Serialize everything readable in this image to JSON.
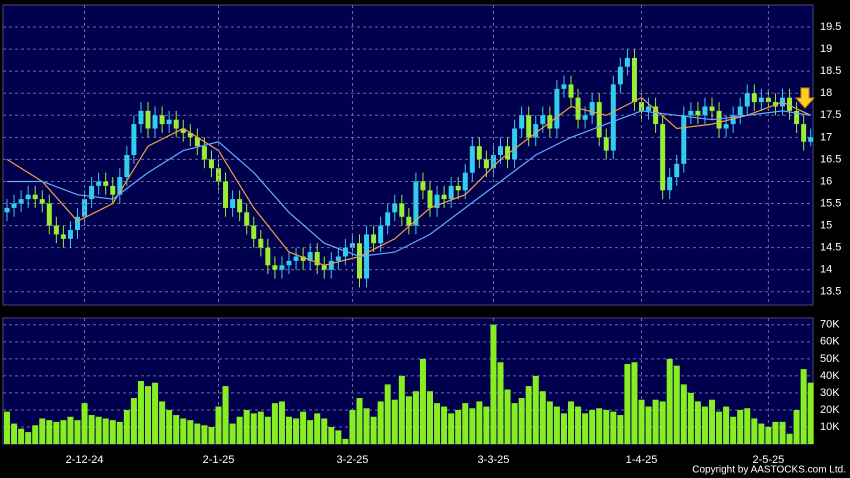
{
  "chart_data": [
    {
      "type": "candlestick",
      "ylim": [
        13.2,
        20.0
      ],
      "yticks": [
        13.5,
        14,
        14.5,
        15,
        15.5,
        16,
        16.5,
        17,
        17.5,
        18,
        18.5,
        19,
        19.5
      ],
      "up_color": "#33ccee",
      "down_color": "#99ee33",
      "grid": true,
      "open": [
        15.3,
        15.4,
        15.5,
        15.6,
        15.7,
        15.6,
        15.5,
        15.0,
        14.8,
        14.7,
        14.9,
        15.2,
        15.6,
        15.9,
        16.0,
        15.9,
        15.7,
        16.1,
        16.6,
        17.3,
        17.6,
        17.2,
        17.5,
        17.3,
        17.4,
        17.2,
        17.1,
        17.0,
        16.8,
        16.5,
        16.3,
        16.0,
        15.4,
        15.6,
        15.3,
        15.0,
        14.7,
        14.5,
        14.1,
        14.0,
        14.1,
        14.2,
        14.3,
        14.2,
        14.4,
        14.1,
        14.0,
        14.2,
        14.3,
        14.5,
        14.6,
        13.8,
        14.8,
        14.6,
        15.0,
        15.3,
        15.5,
        15.2,
        15.0,
        16.0,
        15.8,
        15.4,
        15.7,
        15.6,
        15.9,
        15.8,
        16.2,
        16.8,
        16.5,
        16.3,
        16.6,
        16.8,
        16.5,
        17.2,
        17.5,
        17.0,
        17.3,
        17.5,
        17.2,
        18.1,
        18.2,
        17.9,
        17.4,
        17.5,
        17.8,
        17.0,
        16.7,
        18.2,
        18.6,
        18.8,
        17.8,
        17.6,
        17.7,
        17.3,
        15.8,
        16.1,
        16.4,
        17.5,
        17.6,
        17.5,
        17.7,
        17.6,
        17.2,
        17.3,
        17.5,
        17.7,
        18.0,
        17.8,
        17.9,
        17.8,
        17.7,
        17.9,
        17.6,
        17.3,
        16.9
      ],
      "high": [
        15.6,
        15.7,
        15.8,
        15.9,
        15.9,
        15.8,
        15.7,
        15.2,
        15.0,
        15.1,
        15.4,
        15.8,
        16.1,
        16.2,
        16.2,
        16.1,
        16.3,
        16.8,
        17.5,
        17.8,
        17.8,
        17.7,
        17.7,
        17.6,
        17.6,
        17.4,
        17.3,
        17.2,
        17.0,
        16.7,
        16.5,
        16.2,
        15.8,
        15.8,
        15.5,
        15.2,
        14.9,
        14.7,
        14.3,
        14.3,
        14.4,
        14.5,
        14.5,
        14.6,
        14.6,
        14.3,
        14.4,
        14.5,
        14.7,
        14.8,
        14.8,
        15.0,
        15.0,
        15.2,
        15.5,
        15.7,
        15.7,
        15.4,
        16.2,
        16.2,
        16.0,
        15.9,
        15.9,
        16.1,
        16.1,
        16.4,
        17.0,
        17.0,
        16.7,
        16.8,
        17.0,
        17.0,
        17.4,
        17.7,
        17.7,
        17.5,
        17.7,
        17.7,
        18.3,
        18.4,
        18.4,
        18.1,
        17.7,
        18.0,
        18.0,
        17.2,
        18.4,
        18.8,
        19.0,
        19.0,
        18.0,
        17.9,
        17.9,
        17.5,
        16.3,
        16.6,
        17.7,
        17.8,
        17.8,
        17.9,
        17.9,
        17.8,
        17.5,
        17.7,
        17.9,
        18.2,
        18.2,
        18.1,
        18.1,
        18.0,
        18.1,
        18.1,
        17.8,
        17.5,
        17.2
      ],
      "low": [
        15.1,
        15.2,
        15.3,
        15.4,
        15.4,
        15.3,
        14.8,
        14.6,
        14.5,
        14.5,
        14.7,
        15.0,
        15.4,
        15.7,
        15.7,
        15.5,
        15.5,
        15.9,
        16.4,
        17.1,
        17.0,
        17.0,
        17.1,
        17.1,
        17.0,
        16.9,
        16.8,
        16.6,
        16.3,
        16.1,
        15.8,
        15.2,
        15.2,
        15.1,
        14.8,
        14.5,
        14.3,
        13.9,
        13.8,
        13.8,
        13.9,
        14.0,
        14.0,
        14.0,
        13.9,
        13.8,
        13.8,
        14.0,
        14.1,
        14.3,
        13.6,
        13.6,
        14.4,
        14.4,
        14.8,
        15.1,
        15.0,
        14.8,
        14.8,
        15.6,
        15.2,
        15.2,
        15.4,
        15.4,
        15.6,
        15.6,
        16.0,
        16.3,
        16.1,
        16.1,
        16.4,
        16.3,
        16.3,
        17.0,
        16.8,
        16.8,
        17.1,
        17.0,
        17.0,
        17.9,
        17.7,
        17.2,
        17.2,
        17.3,
        16.8,
        16.5,
        16.5,
        18.0,
        18.4,
        17.6,
        17.4,
        17.4,
        17.1,
        15.6,
        15.6,
        15.9,
        16.2,
        17.3,
        17.3,
        17.3,
        17.4,
        17.0,
        17.0,
        17.1,
        17.3,
        17.5,
        17.6,
        17.6,
        17.6,
        17.5,
        17.5,
        17.4,
        17.1,
        16.7,
        16.8
      ],
      "close": [
        15.4,
        15.5,
        15.6,
        15.7,
        15.6,
        15.5,
        15.0,
        14.8,
        14.7,
        14.9,
        15.2,
        15.6,
        15.9,
        16.0,
        15.9,
        15.7,
        16.1,
        16.6,
        17.3,
        17.6,
        17.2,
        17.5,
        17.3,
        17.4,
        17.2,
        17.1,
        17.0,
        16.8,
        16.5,
        16.3,
        16.0,
        15.4,
        15.6,
        15.3,
        15.0,
        14.7,
        14.5,
        14.1,
        14.0,
        14.1,
        14.2,
        14.3,
        14.2,
        14.4,
        14.1,
        14.0,
        14.2,
        14.3,
        14.5,
        14.6,
        13.8,
        14.8,
        14.6,
        15.0,
        15.3,
        15.5,
        15.2,
        15.0,
        16.0,
        15.8,
        15.4,
        15.7,
        15.6,
        15.9,
        15.8,
        16.2,
        16.8,
        16.5,
        16.3,
        16.6,
        16.8,
        16.5,
        17.2,
        17.5,
        17.0,
        17.3,
        17.5,
        17.2,
        18.1,
        18.2,
        17.9,
        17.4,
        17.5,
        17.8,
        17.0,
        16.7,
        18.2,
        18.6,
        18.8,
        17.8,
        17.6,
        17.7,
        17.3,
        15.8,
        16.1,
        16.4,
        17.5,
        17.6,
        17.5,
        17.7,
        17.6,
        17.2,
        17.3,
        17.5,
        17.7,
        18.0,
        17.8,
        17.9,
        17.8,
        17.7,
        17.9,
        17.6,
        17.3,
        16.9,
        17.0
      ],
      "series": [
        {
          "color": "#f0a040",
          "x": [
            0,
            5,
            10,
            15,
            20,
            25,
            30,
            35,
            40,
            45,
            50,
            55,
            60,
            65,
            70,
            75,
            80,
            85,
            90,
            95,
            100,
            105,
            110,
            114
          ],
          "values": [
            16.5,
            16.0,
            15.1,
            15.5,
            16.8,
            17.2,
            16.7,
            15.4,
            14.4,
            14.1,
            14.3,
            14.7,
            15.4,
            15.7,
            16.5,
            17.1,
            17.7,
            17.5,
            17.9,
            17.2,
            17.3,
            17.5,
            17.8,
            17.5
          ]
        },
        {
          "color": "#66aaff",
          "x": [
            0,
            5,
            10,
            15,
            20,
            25,
            30,
            35,
            40,
            45,
            50,
            55,
            60,
            65,
            70,
            75,
            80,
            85,
            90,
            95,
            100,
            105,
            110,
            114
          ],
          "values": [
            16.0,
            16.0,
            15.7,
            15.6,
            16.2,
            16.7,
            16.9,
            16.2,
            15.3,
            14.6,
            14.3,
            14.4,
            14.8,
            15.4,
            16.0,
            16.6,
            17.0,
            17.3,
            17.6,
            17.5,
            17.4,
            17.5,
            17.6,
            17.5
          ]
        }
      ]
    },
    {
      "type": "bar",
      "ylim": [
        0,
        74000
      ],
      "color": "#88ee22",
      "grid": true,
      "yticks": [
        {
          "value": 10000,
          "label": "10K"
        },
        {
          "value": 20000,
          "label": "20K"
        },
        {
          "value": 30000,
          "label": "30K"
        },
        {
          "value": 40000,
          "label": "40K"
        },
        {
          "value": 50000,
          "label": "50K"
        },
        {
          "value": 60000,
          "label": "60K"
        },
        {
          "value": 70000,
          "label": "70K"
        }
      ],
      "categories": [
        null,
        null,
        null,
        null,
        null,
        null,
        null,
        null,
        null,
        null,
        null,
        "2-12-24",
        null,
        null,
        null,
        null,
        null,
        null,
        null,
        null,
        null,
        null,
        null,
        null,
        null,
        null,
        null,
        null,
        null,
        null,
        "2-1-25",
        null,
        null,
        null,
        null,
        null,
        null,
        null,
        null,
        null,
        null,
        null,
        null,
        null,
        null,
        null,
        null,
        null,
        null,
        "3-2-25",
        null,
        null,
        null,
        null,
        null,
        null,
        null,
        null,
        null,
        null,
        null,
        null,
        null,
        null,
        null,
        null,
        null,
        null,
        null,
        "3-3-25",
        null,
        null,
        null,
        null,
        null,
        null,
        null,
        null,
        null,
        null,
        null,
        null,
        null,
        null,
        null,
        null,
        null,
        null,
        null,
        null,
        "1-4-25",
        null,
        null,
        null,
        null,
        null,
        null,
        null,
        null,
        null,
        null,
        null,
        null,
        null,
        null,
        null,
        null,
        null,
        "2-5-25",
        null,
        null,
        null,
        null,
        null,
        null
      ],
      "values": [
        19000,
        12000,
        9000,
        7000,
        11000,
        15000,
        14000,
        13000,
        14000,
        16000,
        14000,
        24000,
        17000,
        16000,
        15000,
        14000,
        13000,
        20000,
        27000,
        37000,
        34000,
        36000,
        25000,
        20000,
        17000,
        15000,
        14000,
        12000,
        11000,
        10000,
        22000,
        34000,
        12000,
        16000,
        20000,
        18000,
        19000,
        16000,
        24000,
        25000,
        16000,
        15000,
        19000,
        14000,
        18000,
        15000,
        10000,
        8000,
        3000,
        20000,
        27000,
        21000,
        16000,
        25000,
        35000,
        26000,
        40000,
        28000,
        31000,
        50000,
        31000,
        24000,
        22000,
        18000,
        20000,
        24000,
        21000,
        25000,
        22000,
        70000,
        48000,
        32000,
        24000,
        27000,
        34000,
        40000,
        31000,
        25000,
        22000,
        18000,
        25000,
        22000,
        18000,
        20000,
        21000,
        20000,
        19000,
        17000,
        47000,
        48000,
        26000,
        22000,
        26000,
        25000,
        50000,
        46000,
        35000,
        30000,
        25000,
        22000,
        26000,
        19000,
        22000,
        16000,
        20000,
        21000,
        15000,
        12000,
        10000,
        13000,
        13000,
        6000,
        20000,
        44000,
        36000
      ]
    }
  ],
  "copyright": "Copyright by AASTOCKS.com Ltd."
}
